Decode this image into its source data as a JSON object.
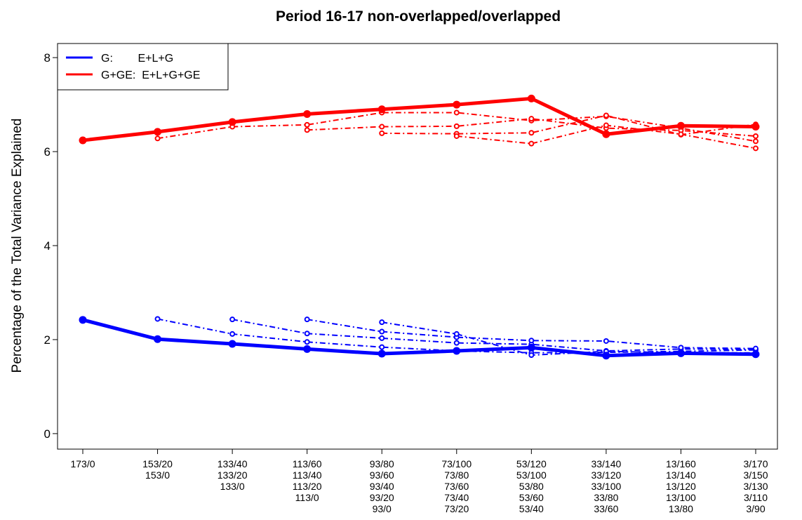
{
  "chart_data": {
    "type": "line",
    "title": "Period 16-17  non-overlapped/overlapped",
    "ylabel": "Percentage of the Total Variance Explained",
    "legend": "top-left",
    "grid": false,
    "categories": [
      [
        "173/0"
      ],
      [
        "153/20",
        "153/0"
      ],
      [
        "133/40",
        "133/20",
        "133/0"
      ],
      [
        "113/60",
        "113/40",
        "113/20",
        "113/0"
      ],
      [
        "93/80",
        "93/60",
        "93/40",
        "93/20",
        "93/0"
      ],
      [
        "73/100",
        "73/80",
        "73/60",
        "73/40",
        "73/20"
      ],
      [
        "53/120",
        "53/100",
        "53/80",
        "53/60",
        "53/40"
      ],
      [
        "33/140",
        "33/120",
        "33/100",
        "33/80",
        "33/60"
      ],
      [
        "13/160",
        "13/140",
        "13/120",
        "13/100",
        "13/80"
      ],
      [
        "3/170",
        "3/150",
        "3/130",
        "3/110",
        "3/90"
      ]
    ],
    "ylim": [
      -0.33,
      8.3
    ],
    "yticks": [
      0,
      2,
      4,
      6,
      8
    ],
    "series": [
      {
        "name": "G:        E+L+G",
        "color": "#0000ff",
        "style": "solid",
        "values": [
          2.42,
          2.01,
          1.91,
          1.8,
          1.7,
          1.76,
          1.83,
          1.66,
          1.71,
          1.69
        ]
      },
      {
        "name": "G+GE:  E+L+G+GE",
        "color": "#ff0000",
        "style": "solid",
        "values": [
          6.24,
          6.42,
          6.63,
          6.8,
          6.9,
          7.0,
          7.13,
          6.37,
          6.55,
          6.53
        ]
      },
      {
        "color": "#0000ff",
        "style": "dashed",
        "values": [
          null,
          2.44,
          2.12,
          1.95,
          1.84,
          1.76,
          1.72,
          1.73,
          1.75,
          1.78
        ]
      },
      {
        "color": "#0000ff",
        "style": "dashed",
        "values": [
          null,
          null,
          2.43,
          2.13,
          2.03,
          1.93,
          1.9,
          1.76,
          1.8,
          1.79
        ]
      },
      {
        "color": "#0000ff",
        "style": "dashed",
        "values": [
          null,
          null,
          null,
          2.43,
          2.17,
          2.05,
          1.98,
          1.97,
          1.83,
          1.81
        ]
      },
      {
        "color": "#0000ff",
        "style": "dashed",
        "values": [
          null,
          null,
          null,
          null,
          2.37,
          2.12,
          1.67,
          1.75,
          1.72,
          1.72
        ]
      },
      {
        "color": "#ff0000",
        "style": "dashed",
        "values": [
          null,
          6.28,
          6.53,
          6.57,
          6.83,
          6.83,
          6.66,
          6.75,
          6.5,
          6.22
        ]
      },
      {
        "color": "#ff0000",
        "style": "dashed",
        "values": [
          null,
          null,
          null,
          6.46,
          6.53,
          6.54,
          6.7,
          6.5,
          6.45,
          6.33
        ]
      },
      {
        "color": "#ff0000",
        "style": "dashed",
        "values": [
          null,
          null,
          null,
          null,
          6.39,
          6.38,
          6.4,
          6.77,
          6.36,
          6.58
        ]
      },
      {
        "color": "#ff0000",
        "style": "dashed",
        "values": [
          null,
          null,
          null,
          null,
          null,
          6.33,
          6.17,
          6.56,
          6.37,
          6.07
        ]
      }
    ]
  }
}
